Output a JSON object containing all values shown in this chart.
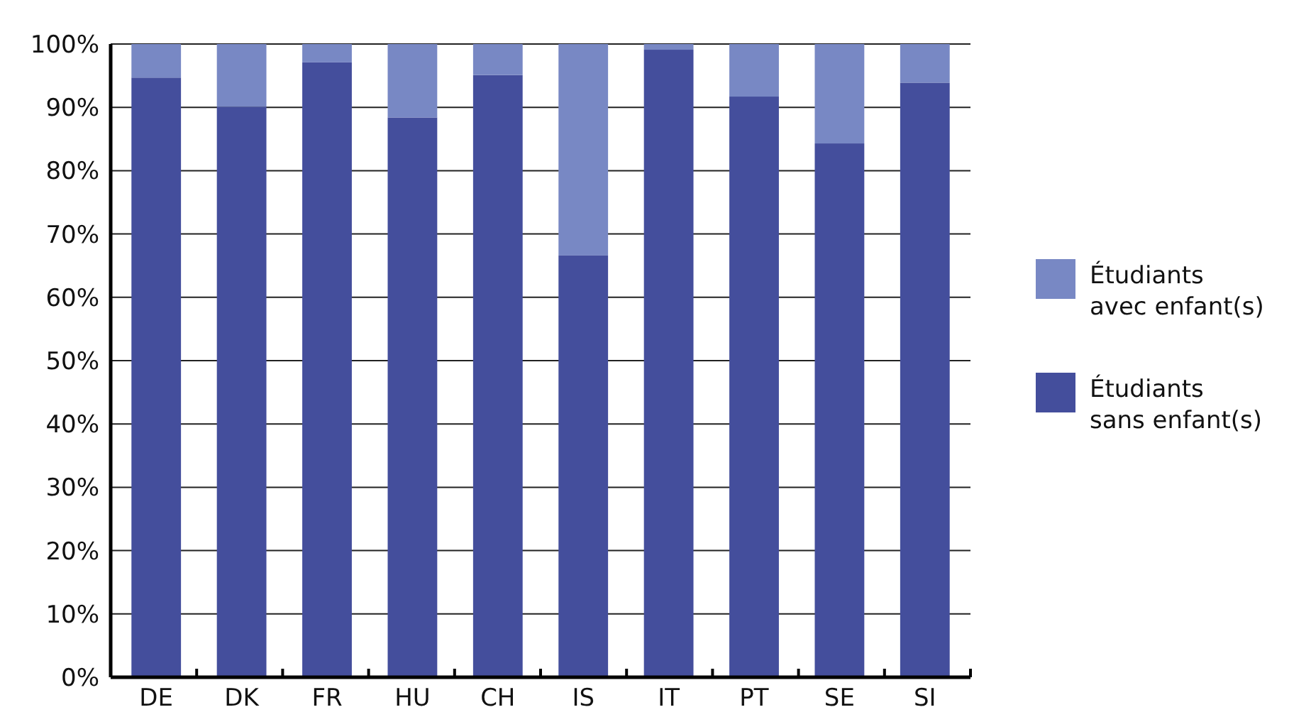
{
  "chart_data": {
    "type": "bar",
    "stacked": true,
    "categories": [
      "DE",
      "DK",
      "FR",
      "HU",
      "CH",
      "IS",
      "IT",
      "PT",
      "SE",
      "SI"
    ],
    "series": [
      {
        "name": "Étudiants sans enfant(s)",
        "color": "#444e9c",
        "values": [
          94.7,
          90.1,
          97.1,
          88.4,
          95.1,
          66.6,
          99.1,
          91.7,
          84.3,
          93.9
        ]
      },
      {
        "name": "Étudiants avec enfant(s)",
        "color": "#7888c4",
        "values": [
          5.3,
          9.9,
          2.9,
          11.6,
          4.9,
          33.4,
          0.9,
          8.3,
          15.7,
          6.1
        ]
      }
    ],
    "ylim": [
      0,
      100
    ],
    "yticks": [
      {
        "value": 0,
        "label": "0%"
      },
      {
        "value": 10,
        "label": "10%"
      },
      {
        "value": 20,
        "label": "20%"
      },
      {
        "value": 30,
        "label": "30%"
      },
      {
        "value": 40,
        "label": "40%"
      },
      {
        "value": 50,
        "label": "50%"
      },
      {
        "value": 60,
        "label": "60%"
      },
      {
        "value": 70,
        "label": "70%"
      },
      {
        "value": 80,
        "label": "80%"
      },
      {
        "value": 90,
        "label": "90%"
      },
      {
        "value": 100,
        "label": "100%"
      }
    ],
    "grid": "y",
    "legend": "right"
  }
}
